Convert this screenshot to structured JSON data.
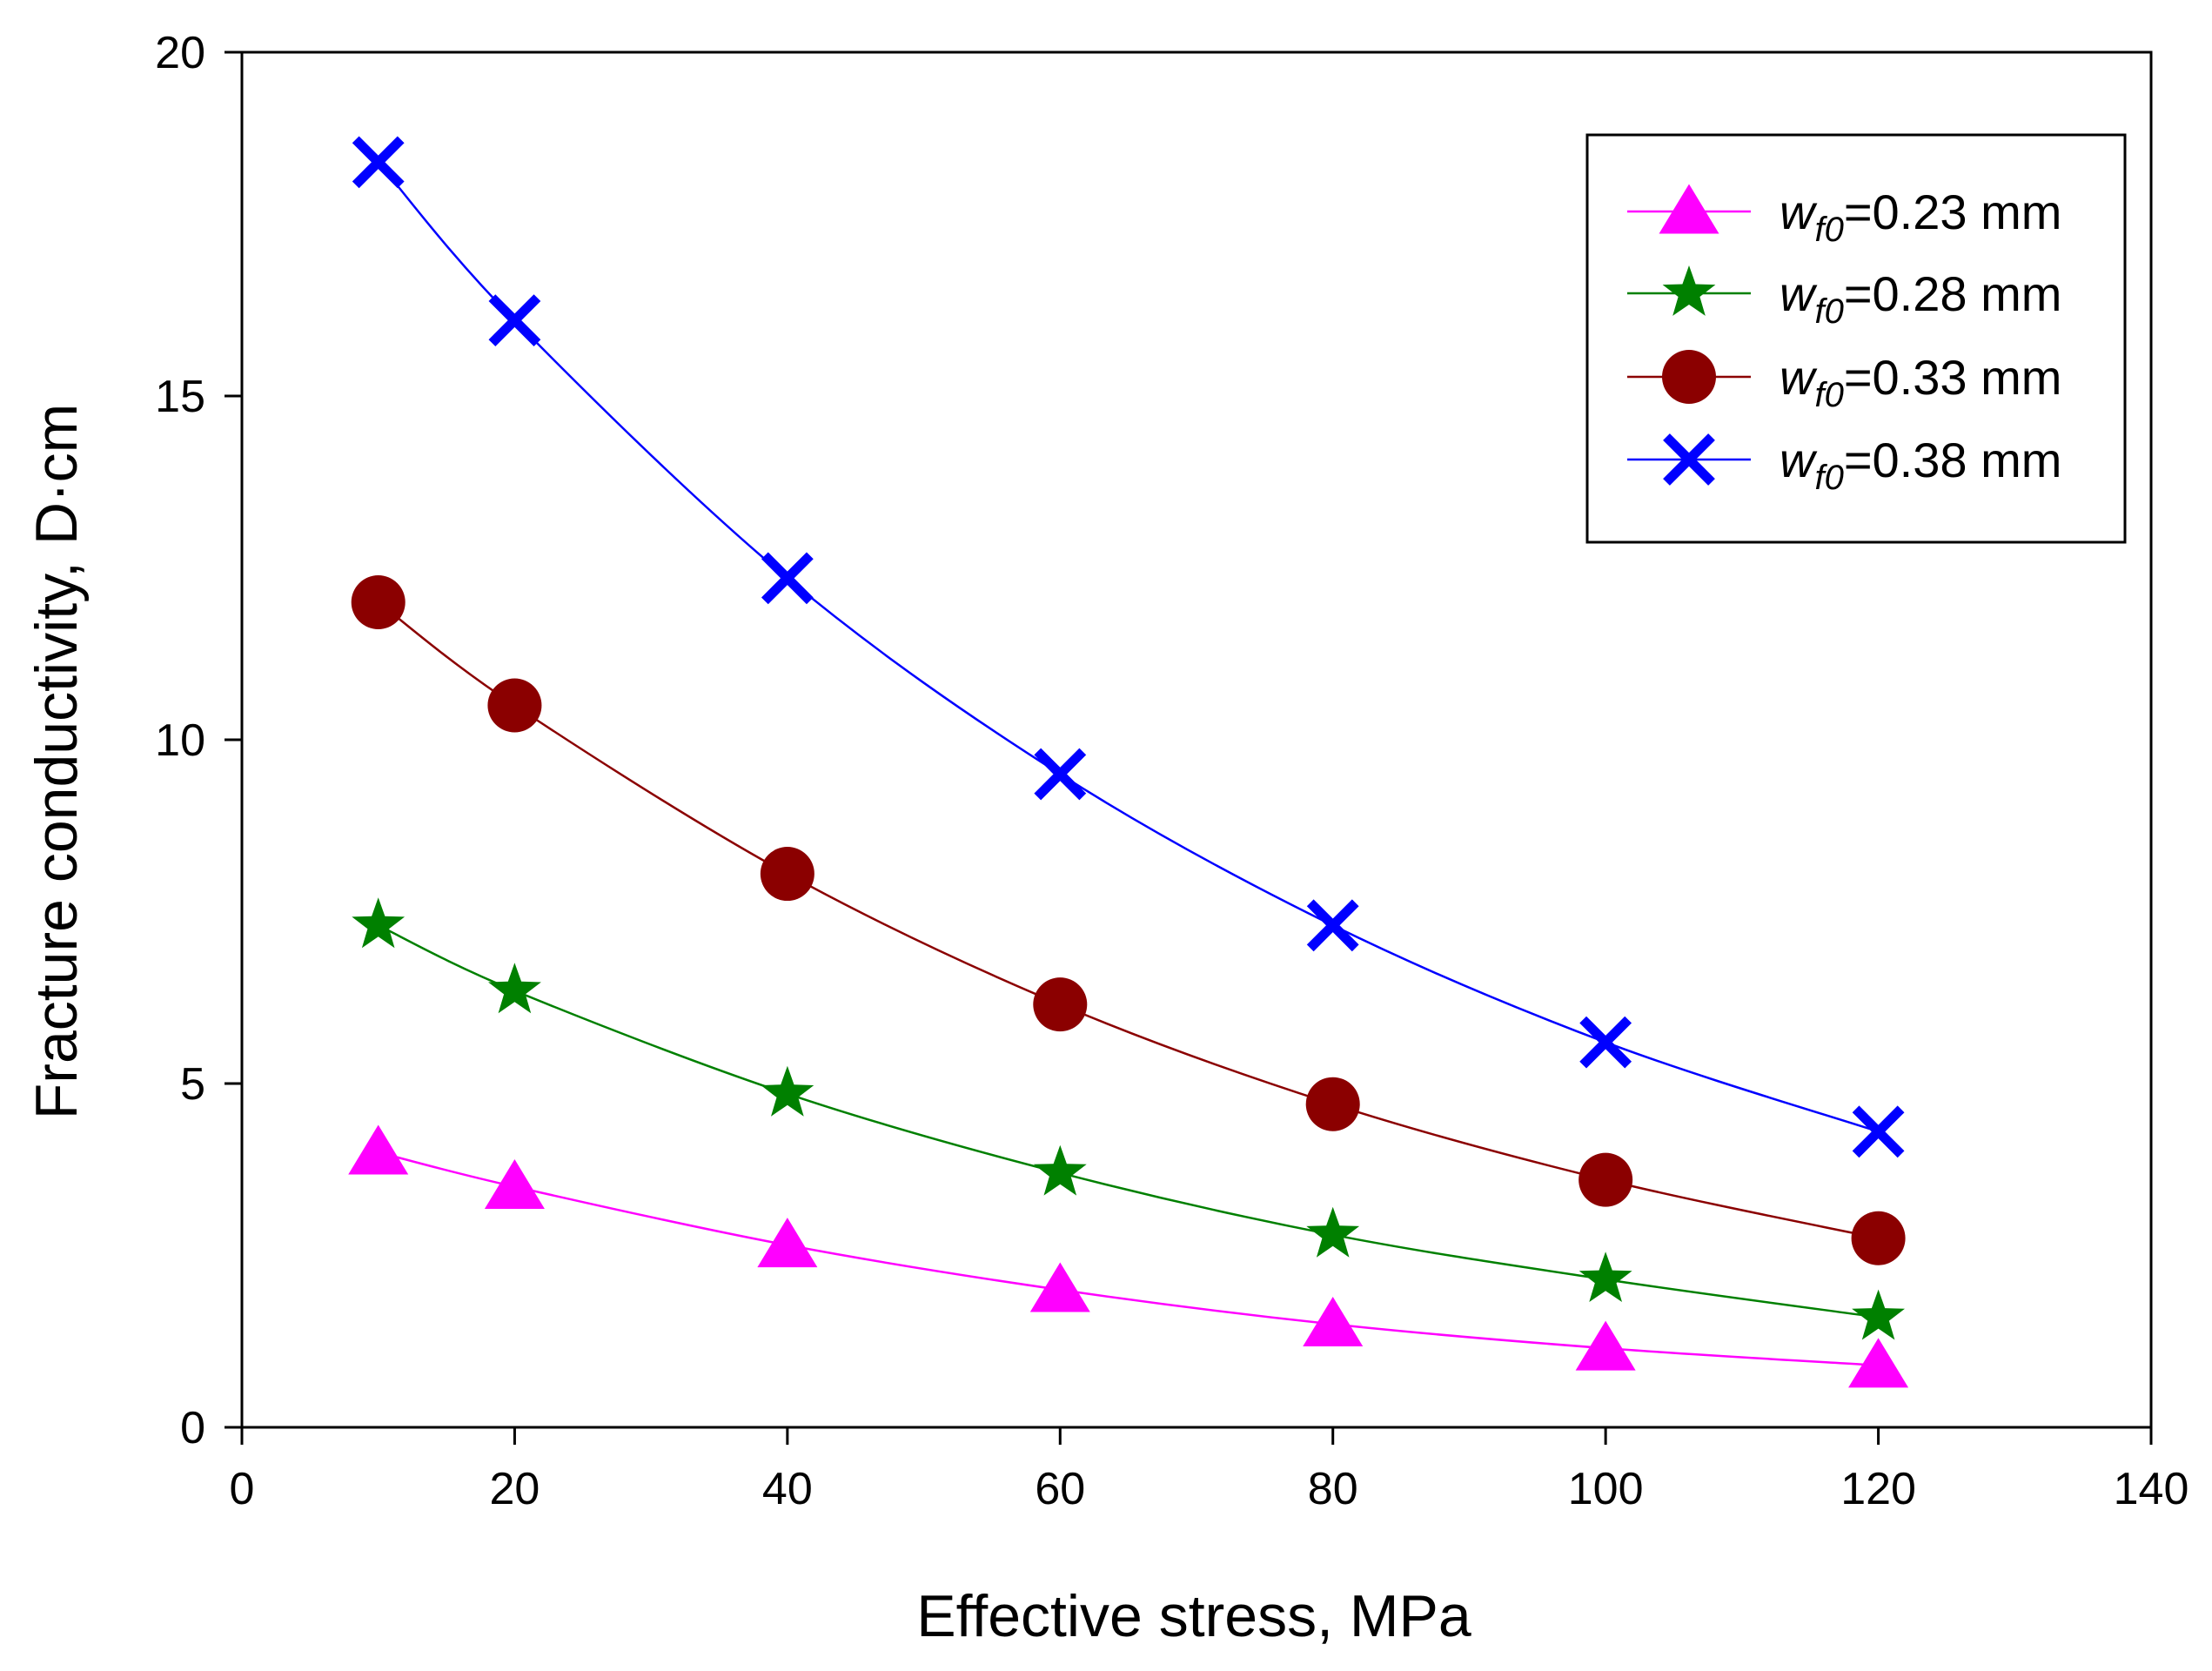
{
  "chart_data": {
    "type": "line",
    "title": "",
    "xlabel": "Effective stress, MPa",
    "ylabel": "Fracture conductivity, D·cm",
    "xlim": [
      0,
      140
    ],
    "ylim": [
      0,
      20
    ],
    "x_ticks": [
      0,
      20,
      40,
      60,
      80,
      100,
      120,
      140
    ],
    "y_ticks": [
      0,
      5,
      10,
      15,
      20
    ],
    "x_tick_labels": [
      "0",
      "20",
      "40",
      "60",
      "80",
      "100",
      "120",
      "140"
    ],
    "y_tick_labels": [
      "0",
      "5",
      "10",
      "15",
      "20"
    ],
    "x": [
      10,
      20,
      40,
      60,
      80,
      100,
      120
    ],
    "grid": false,
    "legend_position": "top-right",
    "series": [
      {
        "name": "w_f0=0.23 mm",
        "label_main": "w",
        "label_sub": "f0",
        "label_rest": "=0.23 mm",
        "color": "#ff00ff",
        "marker": "triangle",
        "values": [
          4.0,
          3.5,
          2.65,
          2.0,
          1.5,
          1.15,
          0.9
        ]
      },
      {
        "name": "w_f0=0.28 mm",
        "label_main": "w",
        "label_sub": "f0",
        "label_rest": "=0.28 mm",
        "color": "#008000",
        "marker": "star",
        "values": [
          7.3,
          6.35,
          4.85,
          3.7,
          2.8,
          2.15,
          1.6
        ]
      },
      {
        "name": "w_f0=0.33 mm",
        "label_main": "w",
        "label_sub": "f0",
        "label_rest": "=0.33 mm",
        "color": "#8b0000",
        "marker": "circle",
        "values": [
          12.0,
          10.5,
          8.05,
          6.15,
          4.7,
          3.6,
          2.75
        ]
      },
      {
        "name": "w_f0=0.38 mm",
        "label_main": "w",
        "label_sub": "f0",
        "label_rest": "=0.38 mm",
        "color": "#0000ff",
        "marker": "x",
        "values": [
          18.4,
          16.1,
          12.35,
          9.5,
          7.3,
          5.6,
          4.3
        ]
      }
    ]
  }
}
